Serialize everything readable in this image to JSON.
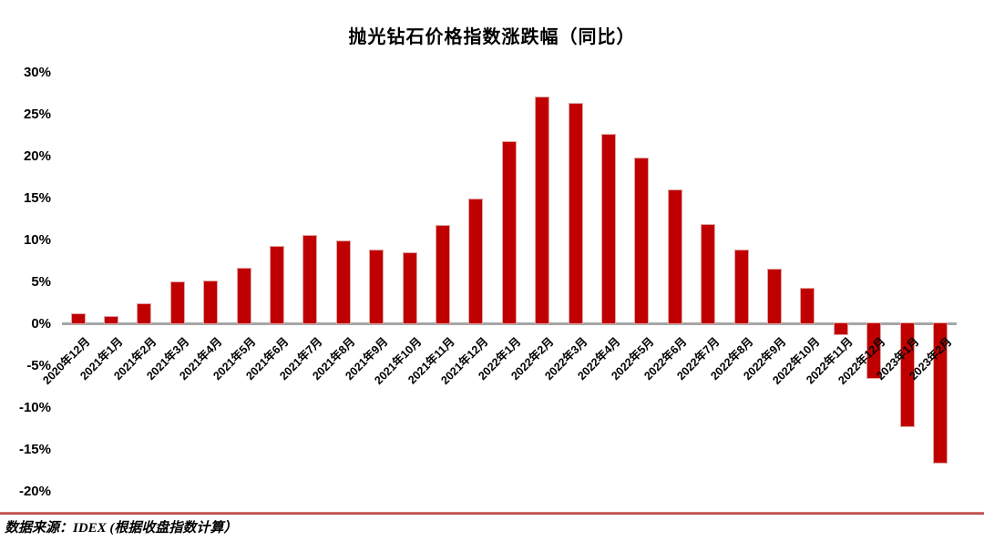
{
  "page": {
    "title": "抛光钻石价格指数涨跌幅（同比）",
    "source_note": "数据来源：IDEX (根据收盘指数计算）"
  },
  "colors": {
    "bar_fill": "#C00000",
    "bar_edge": "#E0A4A4",
    "axis_line": "#A6A6A6",
    "separator_light": "#DB8A8A",
    "separator_dark": "#B02A2A",
    "text": "#000000"
  },
  "chart_data": {
    "type": "bar",
    "title": "抛光钻石价格指数涨跌幅（同比）",
    "categories": [
      "2020年12月",
      "2021年1月",
      "2021年2月",
      "2021年3月",
      "2021年4月",
      "2021年5月",
      "2021年6月",
      "2021年7月",
      "2021年8月",
      "2021年9月",
      "2021年10月",
      "2021年11月",
      "2021年12月",
      "2022年1月",
      "2022年2月",
      "2022年3月",
      "2022年4月",
      "2022年5月",
      "2022年6月",
      "2022年7月",
      "2022年8月",
      "2022年9月",
      "2022年10月",
      "2022年11月",
      "2022年12月",
      "2023年1月",
      "2023年2月"
    ],
    "values": [
      1.3,
      1.0,
      2.5,
      5.1,
      5.2,
      6.7,
      9.4,
      10.6,
      10.0,
      8.9,
      8.6,
      11.9,
      15.0,
      21.9,
      27.2,
      26.4,
      22.7,
      19.9,
      16.1,
      12.0,
      8.9,
      6.6,
      4.3,
      -1.3,
      -6.5,
      -12.3,
      -16.6
    ],
    "value_unit": "%",
    "xlabel": "",
    "ylabel": "",
    "ylim": [
      -20,
      30
    ],
    "ytick_step": 5,
    "ytick_labels": [
      "30%",
      "25%",
      "20%",
      "15%",
      "10%",
      "5%",
      "0%",
      "-5%",
      "-10%",
      "-15%",
      "-20%"
    ],
    "grid": false,
    "legend_position": "none"
  }
}
